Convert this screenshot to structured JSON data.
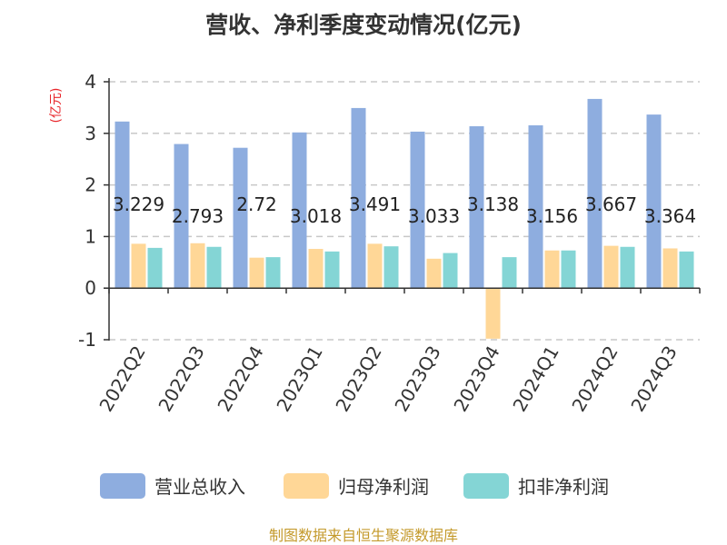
{
  "chart_data": {
    "type": "bar",
    "title": "营收、净利季度变动情况(亿元)",
    "unit_label": "(亿元)",
    "categories": [
      "2022Q2",
      "2022Q3",
      "2022Q4",
      "2023Q1",
      "2023Q2",
      "2023Q3",
      "2023Q4",
      "2024Q1",
      "2024Q2",
      "2024Q3"
    ],
    "series": [
      {
        "name": "营业总收入",
        "color": "#8eaddf",
        "values": [
          3.229,
          2.793,
          2.72,
          3.018,
          3.491,
          3.033,
          3.138,
          3.156,
          3.667,
          3.364
        ]
      },
      {
        "name": "归母净利润",
        "color": "#ffd797",
        "values": [
          0.86,
          0.87,
          0.59,
          0.76,
          0.86,
          0.57,
          -0.98,
          0.73,
          0.82,
          0.77
        ]
      },
      {
        "name": "扣非净利润",
        "color": "#84d5d5",
        "values": [
          0.78,
          0.8,
          0.6,
          0.71,
          0.81,
          0.68,
          0.6,
          0.73,
          0.8,
          0.71
        ]
      }
    ],
    "data_labels": [
      "3.229",
      "2.793",
      "2.72",
      "3.018",
      "3.491",
      "3.033",
      "3.138",
      "3.156",
      "3.667",
      "3.364"
    ],
    "yticks": [
      "4",
      "3",
      "2",
      "1",
      "0",
      "-1"
    ],
    "ylim": [
      -1,
      4
    ],
    "grid": true,
    "legend_position": "bottom"
  },
  "source": "制图数据来自恒生聚源数据库"
}
